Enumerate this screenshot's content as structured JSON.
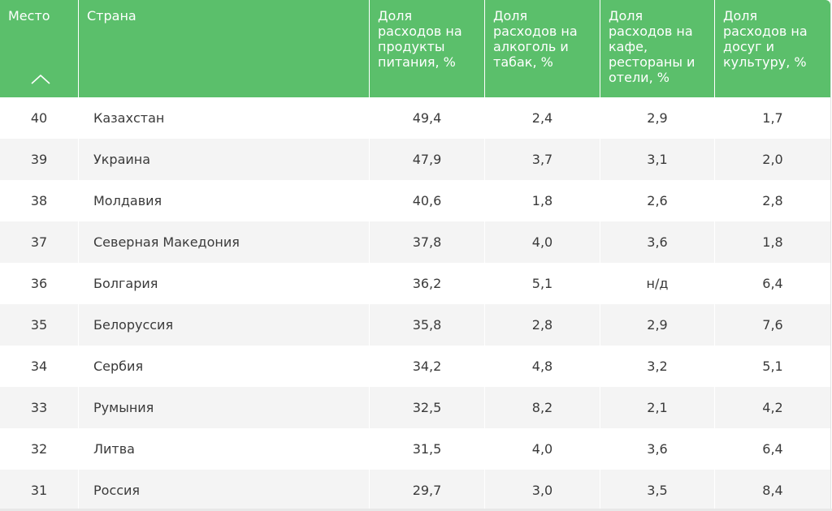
{
  "header": {
    "rank": "Место",
    "country": "Страна",
    "food": [
      "Доля",
      "расходов на",
      "продукты",
      "питания, %"
    ],
    "alcohol": [
      "Доля",
      "расходов на",
      "алкоголь и",
      "табак, %"
    ],
    "cafe": [
      "Доля",
      "расходов на",
      "кафе,",
      "рестораны и",
      "отели, %"
    ],
    "leisure": [
      "Доля",
      "расходов на",
      "досуг и",
      "культуру, %"
    ]
  },
  "sort_icon": "chevron-up-icon",
  "rows": [
    {
      "rank": "40",
      "country": "Казахстан",
      "food": "49,4",
      "alcohol": "2,4",
      "cafe": "2,9",
      "leisure": "1,7"
    },
    {
      "rank": "39",
      "country": "Украина",
      "food": "47,9",
      "alcohol": "3,7",
      "cafe": "3,1",
      "leisure": "2,0"
    },
    {
      "rank": "38",
      "country": "Молдавия",
      "food": "40,6",
      "alcohol": "1,8",
      "cafe": "2,6",
      "leisure": "2,8"
    },
    {
      "rank": "37",
      "country": "Северная Македония",
      "food": "37,8",
      "alcohol": "4,0",
      "cafe": "3,6",
      "leisure": "1,8"
    },
    {
      "rank": "36",
      "country": "Болгария",
      "food": "36,2",
      "alcohol": "5,1",
      "cafe": "н/д",
      "leisure": "6,4"
    },
    {
      "rank": "35",
      "country": "Белоруссия",
      "food": "35,8",
      "alcohol": "2,8",
      "cafe": "2,9",
      "leisure": "7,6"
    },
    {
      "rank": "34",
      "country": "Сербия",
      "food": "34,2",
      "alcohol": "4,8",
      "cafe": "3,2",
      "leisure": "5,1"
    },
    {
      "rank": "33",
      "country": "Румыния",
      "food": "32,5",
      "alcohol": "8,2",
      "cafe": "2,1",
      "leisure": "4,2"
    },
    {
      "rank": "32",
      "country": "Литва",
      "food": "31,5",
      "alcohol": "4,0",
      "cafe": "3,6",
      "leisure": "6,4"
    },
    {
      "rank": "31",
      "country": "Россия",
      "food": "29,7",
      "alcohol": "3,0",
      "cafe": "3,5",
      "leisure": "8,4"
    }
  ],
  "colors": {
    "header_bg": "#5bbf6b",
    "row_alt_bg": "#f4f4f4",
    "text": "#3a3a3a"
  }
}
